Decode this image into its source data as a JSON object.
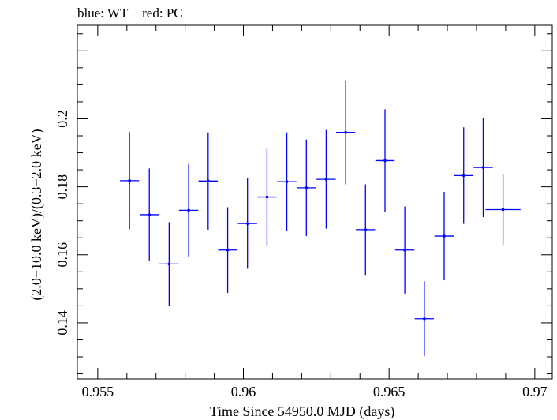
{
  "chart_data": {
    "type": "scatter",
    "title": "blue: WT − red: PC",
    "xlabel": "Time Since 54950.0 MJD (days)",
    "ylabel": "(2.0−10.0 keV)/(0.3−2.0 keV)",
    "xlim": [
      0.9543,
      0.9706
    ],
    "ylim": [
      0.1235,
      0.2275
    ],
    "xticks": [
      {
        "value": 0.955,
        "label": "0.955"
      },
      {
        "value": 0.96,
        "label": "0.96"
      },
      {
        "value": 0.965,
        "label": "0.965"
      },
      {
        "value": 0.97,
        "label": "0.97"
      }
    ],
    "yticks": [
      {
        "value": 0.14,
        "label": "0.14"
      },
      {
        "value": 0.16,
        "label": "0.16"
      },
      {
        "value": 0.18,
        "label": "0.18"
      },
      {
        "value": 0.2,
        "label": "0.2"
      }
    ],
    "grid": false,
    "series": [
      {
        "color": "#0000ff",
        "points": [
          {
            "x": 0.95609,
            "xerr": 0.00033,
            "y": 0.1818,
            "yerr": 0.0143
          },
          {
            "x": 0.95677,
            "xerr": 0.00033,
            "y": 0.1718,
            "yerr": 0.0136
          },
          {
            "x": 0.95745,
            "xerr": 0.00033,
            "y": 0.1573,
            "yerr": 0.0123
          },
          {
            "x": 0.95812,
            "xerr": 0.00033,
            "y": 0.1731,
            "yerr": 0.0136
          },
          {
            "x": 0.95879,
            "xerr": 0.00033,
            "y": 0.1817,
            "yerr": 0.0143
          },
          {
            "x": 0.95946,
            "xerr": 0.00033,
            "y": 0.1614,
            "yerr": 0.0126
          },
          {
            "x": 0.96014,
            "xerr": 0.00033,
            "y": 0.1692,
            "yerr": 0.0133
          },
          {
            "x": 0.96081,
            "xerr": 0.00033,
            "y": 0.177,
            "yerr": 0.0142
          },
          {
            "x": 0.96149,
            "xerr": 0.00033,
            "y": 0.1815,
            "yerr": 0.0145
          },
          {
            "x": 0.96216,
            "xerr": 0.00033,
            "y": 0.1797,
            "yerr": 0.0142
          },
          {
            "x": 0.96284,
            "xerr": 0.00033,
            "y": 0.1822,
            "yerr": 0.0145
          },
          {
            "x": 0.96351,
            "xerr": 0.00033,
            "y": 0.196,
            "yerr": 0.0153
          },
          {
            "x": 0.96419,
            "xerr": 0.00033,
            "y": 0.1674,
            "yerr": 0.0133
          },
          {
            "x": 0.96486,
            "xerr": 0.00033,
            "y": 0.1877,
            "yerr": 0.0151
          },
          {
            "x": 0.96554,
            "xerr": 0.00033,
            "y": 0.1614,
            "yerr": 0.0128
          },
          {
            "x": 0.96621,
            "xerr": 0.00033,
            "y": 0.1412,
            "yerr": 0.011
          },
          {
            "x": 0.96689,
            "xerr": 0.00033,
            "y": 0.1655,
            "yerr": 0.013
          },
          {
            "x": 0.96756,
            "xerr": 0.00033,
            "y": 0.1833,
            "yerr": 0.0142
          },
          {
            "x": 0.96823,
            "xerr": 0.00033,
            "y": 0.1857,
            "yerr": 0.0146
          },
          {
            "x": 0.96891,
            "xerr": 0.0006,
            "y": 0.1733,
            "yerr": 0.0104
          }
        ]
      }
    ]
  }
}
